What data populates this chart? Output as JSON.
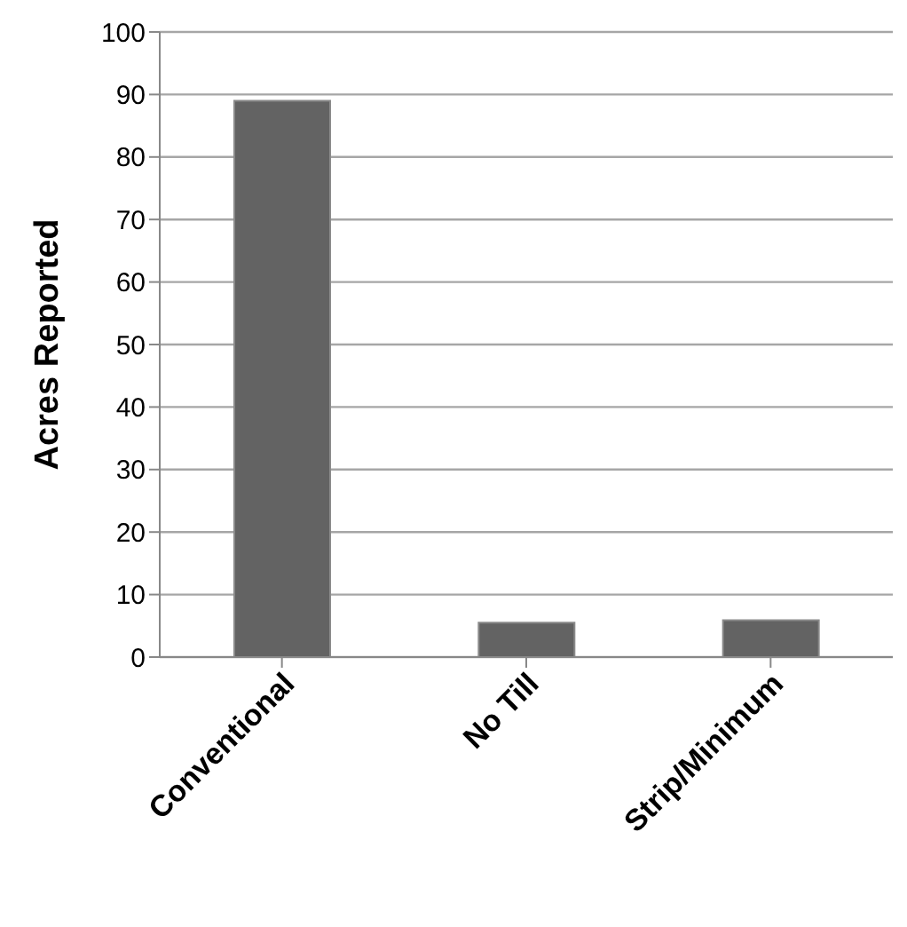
{
  "chart_data": {
    "type": "bar",
    "ylabel": "Acres Reported",
    "categories": [
      "Conventional",
      "No Till",
      "Strip/Minimum"
    ],
    "values": [
      89,
      5.5,
      5.9
    ],
    "color": "#636363",
    "ylim": [
      0,
      100
    ],
    "yticks": [
      0,
      10,
      20,
      30,
      40,
      50,
      60,
      70,
      80,
      90,
      100
    ],
    "grid": "y"
  }
}
